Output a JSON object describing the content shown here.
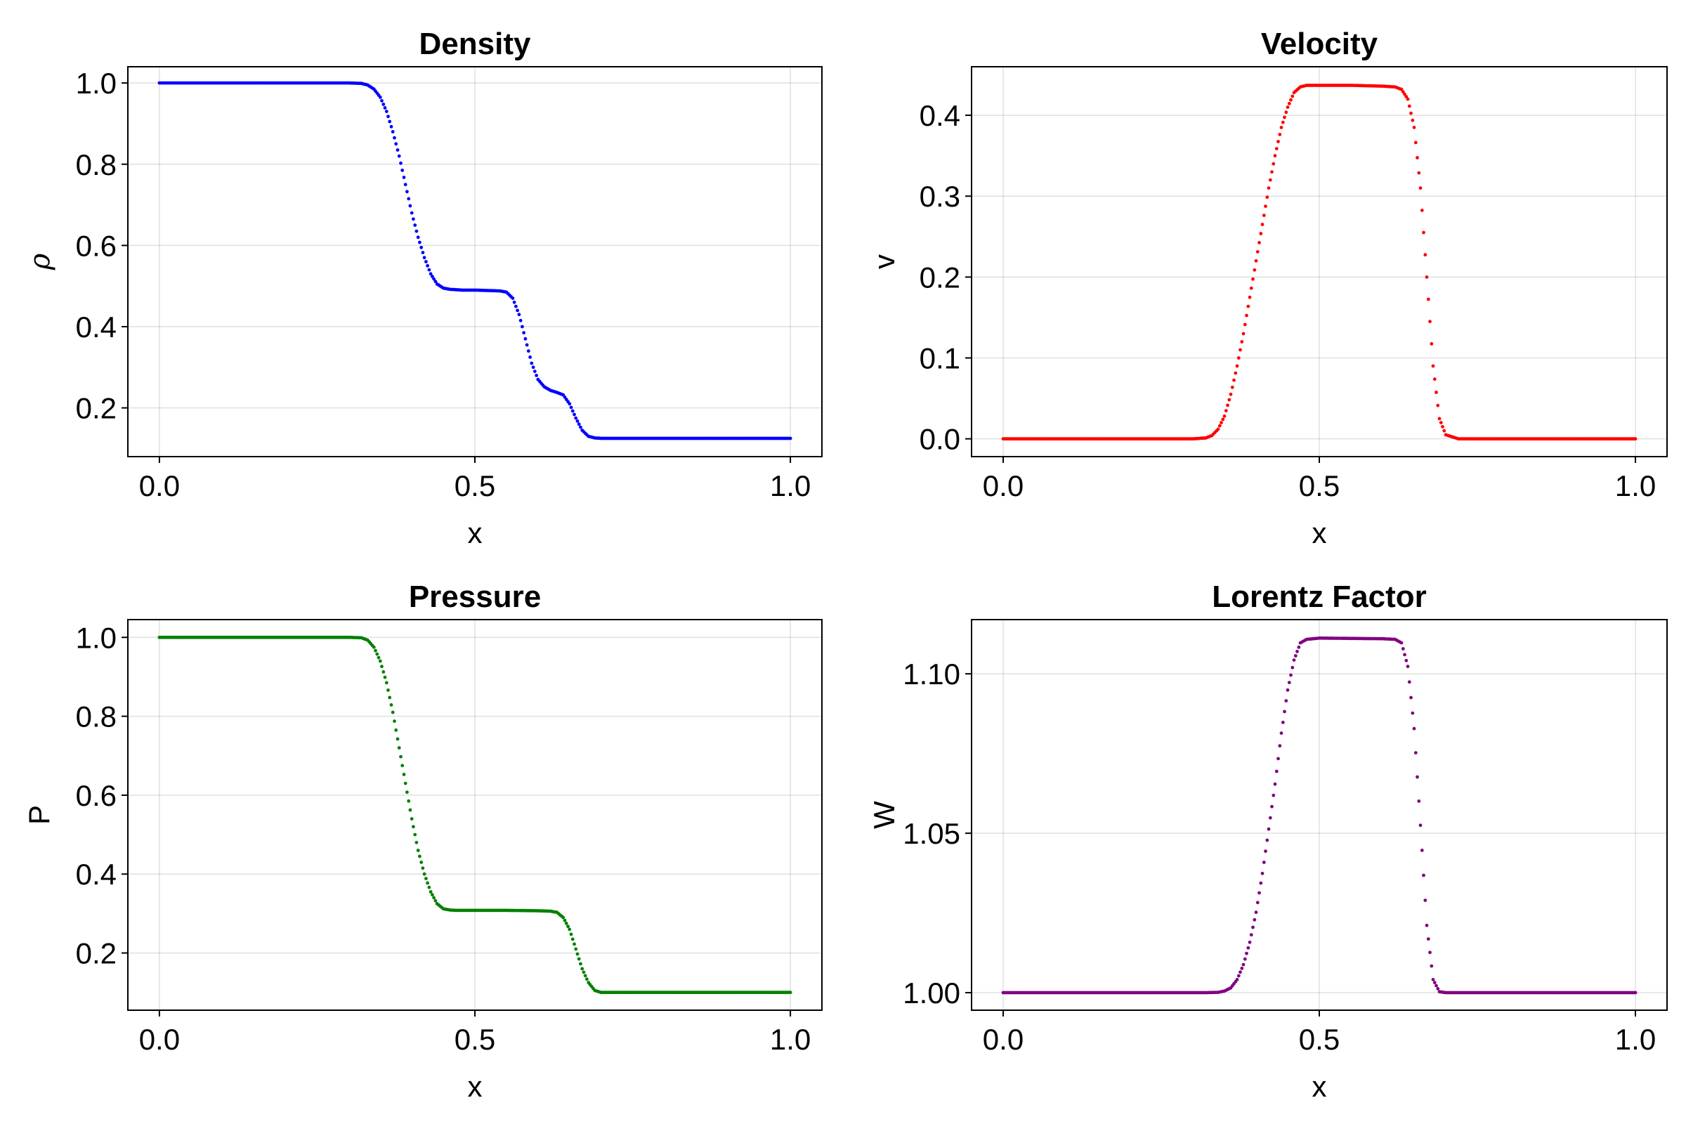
{
  "chart_data": [
    {
      "type": "scatter",
      "title": "Density",
      "xlabel": "x",
      "ylabel": "ρ",
      "xlim": [
        -0.05,
        1.05
      ],
      "ylim": [
        0.08,
        1.04
      ],
      "xticks": [
        0.0,
        0.5,
        1.0
      ],
      "xtick_labels": [
        "0.0",
        "0.5",
        "1.0"
      ],
      "yticks": [
        0.2,
        0.4,
        0.6,
        0.8,
        1.0
      ],
      "ytick_labels": [
        "0.2",
        "0.4",
        "0.6",
        "0.8",
        "1.0"
      ],
      "color": "#0000ff",
      "grid": true,
      "x": [
        0.0,
        0.05,
        0.1,
        0.15,
        0.2,
        0.25,
        0.3,
        0.32,
        0.33,
        0.34,
        0.35,
        0.36,
        0.37,
        0.38,
        0.39,
        0.4,
        0.41,
        0.42,
        0.43,
        0.44,
        0.45,
        0.46,
        0.47,
        0.48,
        0.5,
        0.52,
        0.54,
        0.55,
        0.56,
        0.57,
        0.58,
        0.59,
        0.6,
        0.61,
        0.62,
        0.63,
        0.64,
        0.65,
        0.66,
        0.67,
        0.68,
        0.69,
        0.7,
        0.72,
        0.75,
        0.8,
        0.85,
        0.9,
        0.95,
        1.0
      ],
      "y": [
        1.0,
        1.0,
        1.0,
        1.0,
        1.0,
        1.0,
        1.0,
        0.999,
        0.995,
        0.985,
        0.965,
        0.93,
        0.88,
        0.82,
        0.75,
        0.68,
        0.62,
        0.57,
        0.53,
        0.505,
        0.495,
        0.492,
        0.491,
        0.49,
        0.49,
        0.489,
        0.488,
        0.485,
        0.47,
        0.43,
        0.37,
        0.31,
        0.27,
        0.252,
        0.243,
        0.238,
        0.232,
        0.21,
        0.175,
        0.145,
        0.13,
        0.126,
        0.125,
        0.125,
        0.125,
        0.125,
        0.125,
        0.125,
        0.125,
        0.125
      ]
    },
    {
      "type": "scatter",
      "title": "Velocity",
      "xlabel": "x",
      "ylabel": "v",
      "xlim": [
        -0.05,
        1.05
      ],
      "ylim": [
        -0.022,
        0.46
      ],
      "xticks": [
        0.0,
        0.5,
        1.0
      ],
      "xtick_labels": [
        "0.0",
        "0.5",
        "1.0"
      ],
      "yticks": [
        0.0,
        0.1,
        0.2,
        0.3,
        0.4
      ],
      "ytick_labels": [
        "0.0",
        "0.1",
        "0.2",
        "0.3",
        "0.4"
      ],
      "color": "#ff0000",
      "grid": true,
      "x": [
        0.0,
        0.05,
        0.1,
        0.15,
        0.2,
        0.25,
        0.3,
        0.32,
        0.33,
        0.34,
        0.35,
        0.36,
        0.37,
        0.38,
        0.39,
        0.4,
        0.41,
        0.42,
        0.43,
        0.44,
        0.45,
        0.46,
        0.47,
        0.48,
        0.5,
        0.55,
        0.6,
        0.62,
        0.63,
        0.64,
        0.65,
        0.66,
        0.67,
        0.68,
        0.69,
        0.7,
        0.72,
        0.75,
        0.8,
        0.85,
        0.9,
        0.95,
        1.0
      ],
      "y": [
        0.0,
        0.0,
        0.0,
        0.0,
        0.0,
        0.0,
        0.0,
        0.001,
        0.004,
        0.012,
        0.028,
        0.055,
        0.09,
        0.13,
        0.175,
        0.22,
        0.265,
        0.31,
        0.35,
        0.385,
        0.41,
        0.428,
        0.435,
        0.437,
        0.437,
        0.437,
        0.436,
        0.435,
        0.432,
        0.42,
        0.385,
        0.31,
        0.2,
        0.09,
        0.025,
        0.005,
        0.0,
        0.0,
        0.0,
        0.0,
        0.0,
        0.0,
        0.0
      ]
    },
    {
      "type": "scatter",
      "title": "Pressure",
      "xlabel": "x",
      "ylabel": "P",
      "xlim": [
        -0.05,
        1.05
      ],
      "ylim": [
        0.055,
        1.045
      ],
      "xticks": [
        0.0,
        0.5,
        1.0
      ],
      "xtick_labels": [
        "0.0",
        "0.5",
        "1.0"
      ],
      "yticks": [
        0.2,
        0.4,
        0.6,
        0.8,
        1.0
      ],
      "ytick_labels": [
        "0.2",
        "0.4",
        "0.6",
        "0.8",
        "1.0"
      ],
      "color": "#008000",
      "grid": true,
      "x": [
        0.0,
        0.05,
        0.1,
        0.15,
        0.2,
        0.25,
        0.3,
        0.32,
        0.33,
        0.34,
        0.35,
        0.36,
        0.37,
        0.38,
        0.39,
        0.4,
        0.41,
        0.42,
        0.43,
        0.44,
        0.45,
        0.46,
        0.47,
        0.48,
        0.5,
        0.55,
        0.6,
        0.62,
        0.63,
        0.64,
        0.65,
        0.66,
        0.67,
        0.68,
        0.69,
        0.7,
        0.72,
        0.75,
        0.8,
        0.85,
        0.9,
        0.95,
        1.0
      ],
      "y": [
        1.0,
        1.0,
        1.0,
        1.0,
        1.0,
        1.0,
        1.0,
        0.999,
        0.993,
        0.975,
        0.94,
        0.885,
        0.81,
        0.72,
        0.63,
        0.54,
        0.46,
        0.4,
        0.355,
        0.325,
        0.312,
        0.309,
        0.308,
        0.308,
        0.308,
        0.308,
        0.307,
        0.306,
        0.303,
        0.29,
        0.26,
        0.21,
        0.16,
        0.125,
        0.105,
        0.1,
        0.1,
        0.1,
        0.1,
        0.1,
        0.1,
        0.1,
        0.1
      ]
    },
    {
      "type": "scatter",
      "title": "Lorentz Factor",
      "xlabel": "x",
      "ylabel": "W",
      "xlim": [
        -0.05,
        1.05
      ],
      "ylim": [
        0.9945,
        1.117
      ],
      "xticks": [
        0.0,
        0.5,
        1.0
      ],
      "xtick_labels": [
        "0.0",
        "0.5",
        "1.0"
      ],
      "yticks": [
        1.0,
        1.05,
        1.1
      ],
      "ytick_labels": [
        "1.00",
        "1.05",
        "1.10"
      ],
      "color": "#800080",
      "grid": true,
      "x": [
        0.0,
        0.05,
        0.1,
        0.15,
        0.2,
        0.25,
        0.3,
        0.32,
        0.34,
        0.35,
        0.36,
        0.37,
        0.38,
        0.39,
        0.4,
        0.41,
        0.42,
        0.43,
        0.44,
        0.45,
        0.46,
        0.47,
        0.48,
        0.5,
        0.55,
        0.6,
        0.62,
        0.63,
        0.64,
        0.65,
        0.66,
        0.67,
        0.68,
        0.69,
        0.7,
        0.72,
        0.75,
        0.8,
        0.85,
        0.9,
        0.95,
        1.0
      ],
      "y": [
        1.0,
        1.0,
        1.0,
        1.0,
        1.0,
        1.0,
        1.0,
        1.0,
        1.0001,
        1.0005,
        1.0015,
        1.0041,
        1.0088,
        1.0158,
        1.0252,
        1.0374,
        1.0513,
        1.0654,
        1.0814,
        1.0949,
        1.1043,
        1.1097,
        1.1108,
        1.1112,
        1.1111,
        1.111,
        1.1108,
        1.1097,
        1.1023,
        1.0828,
        1.0525,
        1.0211,
        1.0041,
        1.0003,
        1.0,
        1.0,
        1.0,
        1.0,
        1.0,
        1.0,
        1.0,
        1.0
      ]
    }
  ]
}
